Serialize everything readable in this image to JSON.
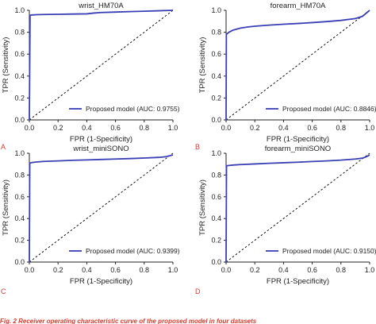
{
  "chart_data": [
    {
      "type": "line",
      "panel_label": "A",
      "title": "wrist_HM70A",
      "xlabel": "FPR (1-Specificity)",
      "ylabel": "TPR (Sensitivity)",
      "xlim": [
        0,
        1
      ],
      "ylim": [
        0,
        1
      ],
      "xticks": [
        "0.0",
        "0.2",
        "0.4",
        "0.6",
        "0.8",
        "1.0"
      ],
      "yticks": [
        "0.0",
        "0.2",
        "0.4",
        "0.6",
        "0.8",
        "1.0"
      ],
      "legend": "bottom-right",
      "series": [
        {
          "name": "Proposed model (AUC: 0.9755)",
          "x": [
            0,
            0.005,
            0.02,
            0.05,
            0.1,
            0.2,
            0.3,
            0.4,
            0.45,
            0.5,
            0.6,
            0.7,
            0.8,
            0.9,
            1.0
          ],
          "y": [
            0,
            0.955,
            0.958,
            0.96,
            0.962,
            0.964,
            0.966,
            0.968,
            0.975,
            0.98,
            0.984,
            0.988,
            0.992,
            0.996,
            1.0
          ]
        }
      ]
    },
    {
      "type": "line",
      "panel_label": "B",
      "title": "forearm_HM70A",
      "xlabel": "FPR (1-Specificity)",
      "ylabel": "TPR (Sensitivity)",
      "xlim": [
        0,
        1
      ],
      "ylim": [
        0,
        1
      ],
      "xticks": [
        "0.0",
        "0.2",
        "0.4",
        "0.6",
        "0.8",
        "1.0"
      ],
      "yticks": [
        "0.0",
        "0.2",
        "0.4",
        "0.6",
        "0.8",
        "1.0"
      ],
      "legend": "bottom-right",
      "series": [
        {
          "name": "Proposed model (AUC: 0.8846)",
          "x": [
            0,
            0.002,
            0.02,
            0.05,
            0.1,
            0.15,
            0.2,
            0.3,
            0.4,
            0.5,
            0.6,
            0.7,
            0.8,
            0.9,
            0.95,
            1.0
          ],
          "y": [
            0,
            0.78,
            0.8,
            0.82,
            0.838,
            0.848,
            0.855,
            0.865,
            0.873,
            0.88,
            0.888,
            0.897,
            0.908,
            0.925,
            0.945,
            1.0
          ]
        }
      ]
    },
    {
      "type": "line",
      "panel_label": "C",
      "title": "wrist_miniSONO",
      "xlabel": "FPR (1-Specificity)",
      "ylabel": "TPR (Sensitivity)",
      "xlim": [
        0,
        1
      ],
      "ylim": [
        0,
        1
      ],
      "xticks": [
        "0.0",
        "0.2",
        "0.4",
        "0.6",
        "0.8",
        "1.0"
      ],
      "yticks": [
        "0.0",
        "0.2",
        "0.4",
        "0.6",
        "0.8",
        "1.0"
      ],
      "legend": "bottom-right",
      "series": [
        {
          "name": "Proposed model (AUC: 0.9399)",
          "x": [
            0,
            0.003,
            0.02,
            0.05,
            0.1,
            0.2,
            0.3,
            0.4,
            0.5,
            0.6,
            0.7,
            0.8,
            0.9,
            0.95,
            1.0
          ],
          "y": [
            0,
            0.91,
            0.915,
            0.92,
            0.925,
            0.93,
            0.935,
            0.939,
            0.943,
            0.947,
            0.951,
            0.956,
            0.962,
            0.968,
            0.985
          ]
        }
      ]
    },
    {
      "type": "line",
      "panel_label": "D",
      "title": "forearm_miniSONO",
      "xlabel": "FPR (1-Specificity)",
      "ylabel": "TPR (Sensitivity)",
      "xlim": [
        0,
        1
      ],
      "ylim": [
        0,
        1
      ],
      "xticks": [
        "0.0",
        "0.2",
        "0.4",
        "0.6",
        "0.8",
        "1.0"
      ],
      "yticks": [
        "0.0",
        "0.2",
        "0.4",
        "0.6",
        "0.8",
        "1.0"
      ],
      "legend": "bottom-right",
      "series": [
        {
          "name": "Proposed model (AUC: 0.9150)",
          "x": [
            0,
            0.003,
            0.02,
            0.05,
            0.1,
            0.2,
            0.3,
            0.4,
            0.5,
            0.6,
            0.7,
            0.8,
            0.9,
            0.95,
            0.98,
            1.0
          ],
          "y": [
            0,
            0.885,
            0.888,
            0.892,
            0.896,
            0.902,
            0.908,
            0.913,
            0.918,
            0.924,
            0.93,
            0.937,
            0.947,
            0.955,
            0.97,
            0.985
          ]
        }
      ]
    }
  ],
  "colors": {
    "roc_line": "#3a3fb4",
    "diagonal": "#111111",
    "axis": "#222222",
    "panel_label": "#d83a2e"
  },
  "caption": "Fig. 2  Receiver operating characteristic curve of the proposed model in four datasets"
}
